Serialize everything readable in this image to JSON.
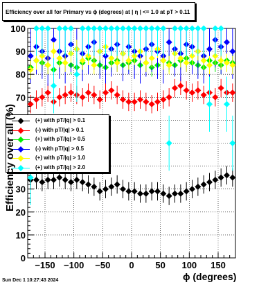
{
  "title": "Efficiency over all for Primary vs ϕ (degrees) at |  η  | <= 1.0 at pT > 0.11",
  "timestamp": "Sun Dec  1 10:27:43 2024",
  "chart_data": {
    "type": "scatter",
    "xlabel": "ϕ (degrees)",
    "ylabel": "Efficiency over all (%)",
    "xlim": [
      -180,
      180
    ],
    "ylim": [
      0,
      100
    ],
    "x_ticks": [
      "−150",
      "−100",
      "−50",
      "0",
      "50",
      "100",
      "150"
    ],
    "x_tick_values": [
      -150,
      -100,
      -50,
      0,
      50,
      100,
      150
    ],
    "y_ticks": [
      "0",
      "10",
      "20",
      "30",
      "40",
      "50",
      "60",
      "70",
      "80",
      "90",
      "100"
    ],
    "y_tick_values": [
      0,
      10,
      20,
      30,
      40,
      50,
      60,
      70,
      80,
      90,
      100
    ],
    "grid": true,
    "legend_position": "middle-left",
    "series": [
      {
        "name": "(+) with pT/|q| > 0.1",
        "color": "#000000",
        "marker": "diamond",
        "x": [
          -175,
          -165,
          -155,
          -145,
          -135,
          -125,
          -115,
          -105,
          -95,
          -85,
          -75,
          -65,
          -55,
          -45,
          -35,
          -25,
          -15,
          -5,
          5,
          15,
          25,
          35,
          45,
          55,
          65,
          75,
          85,
          95,
          105,
          115,
          125,
          135,
          145,
          155,
          165,
          175
        ],
        "y": [
          34,
          34,
          33,
          34,
          34,
          35,
          34,
          33,
          34,
          33,
          32,
          31,
          29,
          30,
          31,
          32,
          30,
          29,
          29,
          28,
          28,
          29,
          29,
          28,
          27,
          28,
          28,
          29,
          30,
          31,
          32,
          33,
          34,
          35,
          36,
          35
        ]
      },
      {
        "name": "(-) with pT/|q| > 0.1",
        "color": "#ff0000",
        "marker": "diamond",
        "x": [
          -175,
          -165,
          -155,
          -145,
          -135,
          -125,
          -115,
          -105,
          -95,
          -85,
          -75,
          -65,
          -55,
          -45,
          -35,
          -25,
          -15,
          -5,
          5,
          15,
          25,
          35,
          45,
          55,
          65,
          75,
          85,
          95,
          105,
          115,
          125,
          135,
          145,
          155,
          165,
          175
        ],
        "y": [
          67,
          69,
          70,
          72,
          68,
          70,
          71,
          72,
          71,
          70,
          72,
          71,
          69,
          72,
          73,
          71,
          69,
          68,
          68,
          69,
          68,
          67,
          68,
          69,
          70,
          74,
          75,
          73,
          72,
          73,
          71,
          72,
          70,
          74,
          72,
          72
        ]
      },
      {
        "name": "(+) with pT/|q| > 0.5",
        "color": "#00ee00",
        "marker": "diamond",
        "x": [
          -175,
          -165,
          -155,
          -145,
          -135,
          -125,
          -115,
          -105,
          -95,
          -85,
          -75,
          -65,
          -55,
          -45,
          -35,
          -25,
          -15,
          -5,
          5,
          15,
          25,
          35,
          45,
          55,
          65,
          75,
          85,
          95,
          105,
          115,
          125,
          135,
          145,
          155,
          165,
          175
        ],
        "y": [
          83,
          86,
          85,
          84,
          82,
          85,
          88,
          84,
          83,
          85,
          87,
          86,
          84,
          83,
          85,
          86,
          84,
          85,
          86,
          84,
          85,
          83,
          84,
          86,
          85,
          84,
          86,
          87,
          85,
          84,
          83,
          86,
          85,
          84,
          86,
          85
        ]
      },
      {
        "name": "(-) with pT/|q| > 0.5",
        "color": "#0000ff",
        "marker": "diamond",
        "x": [
          -175,
          -165,
          -155,
          -145,
          -135,
          -125,
          -115,
          -105,
          -95,
          -85,
          -75,
          -65,
          -55,
          -45,
          -35,
          -25,
          -15,
          -5,
          5,
          15,
          25,
          35,
          45,
          55,
          65,
          75,
          85,
          95,
          105,
          115,
          125,
          135,
          145,
          155,
          165,
          175
        ],
        "y": [
          88,
          92,
          90,
          87,
          95,
          90,
          88,
          93,
          91,
          89,
          92,
          94,
          90,
          88,
          91,
          93,
          89,
          92,
          90,
          88,
          91,
          93,
          90,
          88,
          94,
          91,
          89,
          93,
          92,
          90,
          88,
          91,
          95,
          92,
          94,
          90
        ]
      },
      {
        "name": "(+) with pT/|q| > 1.0",
        "color": "#ffff00",
        "marker": "diamond",
        "x": [
          -175,
          -165,
          -155,
          -145,
          -135,
          -125,
          -115,
          -105,
          -95,
          -85,
          -75,
          -65,
          -55,
          -45,
          -35,
          -25,
          -15,
          -5,
          5,
          15,
          25,
          35,
          45,
          55,
          65,
          75,
          85,
          95,
          105,
          115,
          125,
          135,
          145,
          155,
          165,
          175
        ],
        "y": [
          82,
          86,
          88,
          84,
          90,
          87,
          85,
          89,
          91,
          86,
          88,
          84,
          90,
          92,
          87,
          85,
          89,
          86,
          88,
          90,
          85,
          87,
          91,
          86,
          84,
          89,
          87,
          85,
          88,
          90,
          86,
          84,
          88,
          86,
          85,
          84
        ]
      },
      {
        "name": "(+) with pT/|q| > 2.0",
        "color": "#00ffff",
        "marker": "diamond",
        "x": [
          -175,
          -165,
          -155,
          -145,
          -135,
          -125,
          -115,
          -105,
          -95,
          -85,
          -75,
          -65,
          -55,
          -45,
          -35,
          -25,
          -15,
          -5,
          5,
          15,
          25,
          35,
          45,
          55,
          65,
          75,
          85,
          95,
          105,
          115,
          125,
          135,
          145,
          155,
          165,
          175
        ],
        "y": [
          35,
          100,
          100,
          100,
          75,
          100,
          100,
          100,
          80,
          100,
          100,
          100,
          100,
          100,
          100,
          100,
          100,
          100,
          100,
          100,
          100,
          100,
          100,
          100,
          50,
          100,
          100,
          100,
          100,
          100,
          100,
          67,
          100,
          100,
          67,
          50
        ]
      }
    ]
  }
}
